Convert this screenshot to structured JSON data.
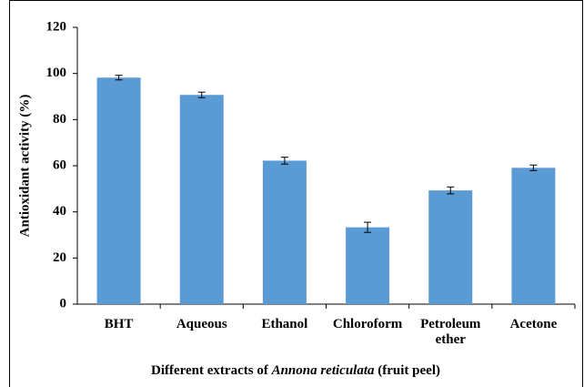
{
  "chart_data": {
    "type": "bar",
    "ylabel": "Antioxidant activity (%)",
    "xlabel": [
      "Different extracts of",
      "Annona reticulata",
      "(fruit peel)"
    ],
    "categories": [
      "BHT",
      "Aqueous",
      "Ethanol",
      "Chloroform",
      "Petroleum ether",
      "Acetone"
    ],
    "values": [
      98.2,
      90.7,
      62.2,
      33.3,
      49.3,
      59.1
    ],
    "errors": [
      1.0,
      1.2,
      1.5,
      2.2,
      1.5,
      1.2
    ],
    "color": "#5b9bd5",
    "ylim": [
      0,
      120
    ],
    "yticks": [
      0,
      20,
      40,
      60,
      80,
      100,
      120
    ],
    "grid": false
  }
}
